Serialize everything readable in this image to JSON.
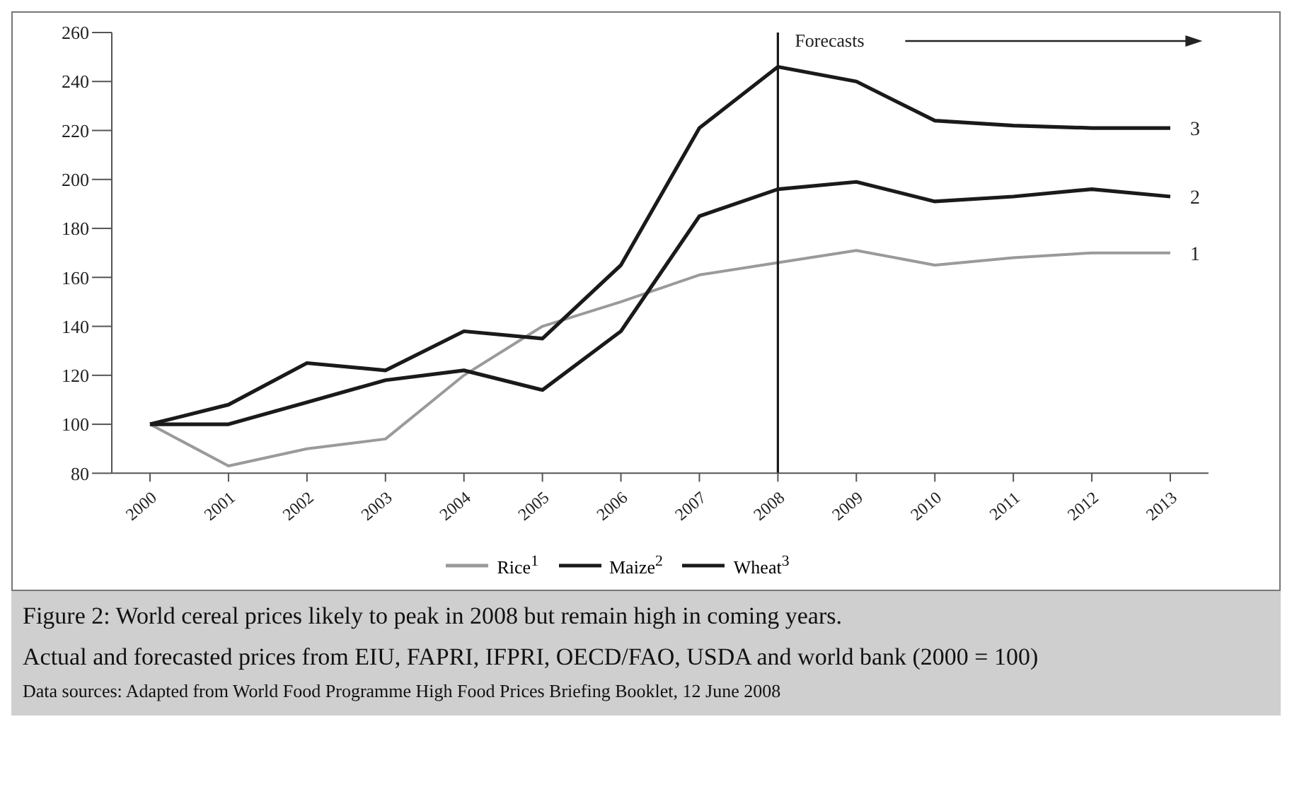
{
  "chart_data": {
    "type": "line",
    "title": "Figure 2: World cereal prices likely to peak in 2008 but remain high in coming years.",
    "subtitle": "Actual and forecasted prices from EIU, FAPRI, IFPRI, OECD/FAO, USDA and world bank (2000 = 100)",
    "categories": [
      "2000",
      "2001",
      "2002",
      "2003",
      "2004",
      "2005",
      "2006",
      "2007",
      "2008",
      "2009",
      "2010",
      "2011",
      "2012",
      "2013"
    ],
    "series": [
      {
        "name": "Rice$^{1}$",
        "color": "#9a9a9a",
        "values": [
          100,
          83,
          90,
          94,
          120,
          140,
          150,
          161,
          166,
          171,
          165,
          168,
          170,
          170
        ]
      },
      {
        "name": "Maize$^{2}$",
        "color": "#1a1a1a",
        "values": [
          100,
          100,
          109,
          118,
          122,
          114,
          138,
          185,
          196,
          199,
          191,
          193,
          196,
          193
        ]
      },
      {
        "name": "Wheat$^{3}$",
        "color": "#1a1a1a",
        "values": [
          100,
          108,
          125,
          122,
          138,
          135,
          165,
          221,
          246,
          240,
          224,
          222,
          221,
          221
        ]
      }
    ],
    "ylim": [
      80,
      260
    ],
    "yticks": [
      80,
      100,
      120,
      140,
      160,
      180,
      200,
      220,
      240,
      260
    ],
    "ref_lines": [
      {
        "axis": "x",
        "value": "2008",
        "label": "Forecasts",
        "color": "#1a1a1a"
      }
    ],
    "annotations": [
      {
        "text": "1",
        "x": "2013",
        "y": 170
      },
      {
        "text": "2",
        "x": "2013",
        "y": 193
      },
      {
        "text": "3",
        "x": "2013",
        "y": 221
      },
      "Data sources: Adapted from World Food Programme High Food Prices Briefing Booklet, 12 June 2008"
    ],
    "grid": false,
    "legend": "bottom",
    "marker": "none",
    "line_style": "solid"
  }
}
